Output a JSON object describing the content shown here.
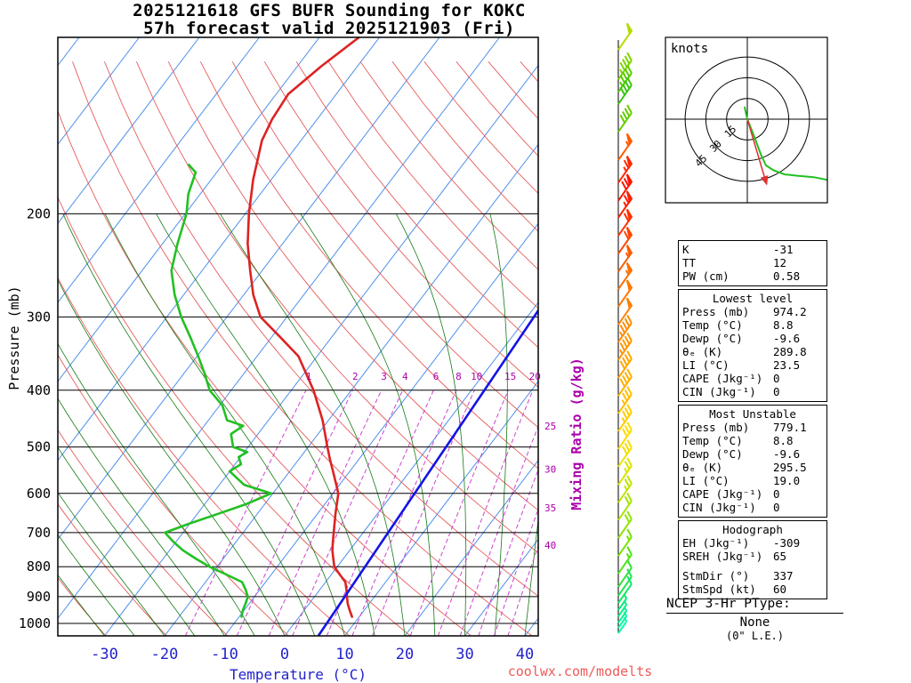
{
  "title": {
    "line1": "2025121618 GFS BUFR Sounding for KOKC",
    "line2": "57h forecast valid 2025121903 (Fri)"
  },
  "axes": {
    "pressure_label": "Pressure (mb)",
    "pressure_ticks": [
      200,
      300,
      400,
      500,
      600,
      700,
      800,
      900,
      1000
    ],
    "temperature_label": "Temperature (°C)",
    "temperature_ticks": [
      -30,
      -20,
      -10,
      0,
      10,
      20,
      30,
      40
    ],
    "mixing_ratio_label": "Mixing Ratio (g/kg)",
    "mixing_ratio_values": [
      1,
      2,
      3,
      4,
      6,
      8,
      10,
      15,
      20,
      25,
      30,
      35,
      40
    ]
  },
  "chart_data": {
    "type": "line",
    "subtype": "skew-t log-p sounding",
    "pressure_range_mb": [
      100,
      1050
    ],
    "grid": {
      "isotherms_every_c": 10,
      "dry_adiabats_every_k": 10,
      "moist_adiabats": true,
      "mixing_ratio_dashed": true
    },
    "series": [
      {
        "name": "temperature",
        "units": "mb,C",
        "color": "#dd2222",
        "width": 2.6,
        "points": [
          [
            974,
            8.8
          ],
          [
            950,
            7.6
          ],
          [
            925,
            6.4
          ],
          [
            900,
            5.4
          ],
          [
            875,
            4.4
          ],
          [
            850,
            3.3
          ],
          [
            825,
            1.4
          ],
          [
            800,
            -0.5
          ],
          [
            775,
            -1.7
          ],
          [
            750,
            -2.9
          ],
          [
            725,
            -3.9
          ],
          [
            700,
            -4.9
          ],
          [
            650,
            -7.0
          ],
          [
            600,
            -9.1
          ],
          [
            575,
            -10.9
          ],
          [
            550,
            -12.8
          ],
          [
            525,
            -14.8
          ],
          [
            500,
            -16.8
          ],
          [
            450,
            -21.0
          ],
          [
            400,
            -26.3
          ],
          [
            375,
            -29.6
          ],
          [
            350,
            -33.1
          ],
          [
            325,
            -38.5
          ],
          [
            300,
            -44.4
          ],
          [
            275,
            -48.4
          ],
          [
            250,
            -52.0
          ],
          [
            225,
            -55.8
          ],
          [
            200,
            -59.4
          ],
          [
            175,
            -63.0
          ],
          [
            150,
            -66.5
          ],
          [
            138,
            -67.5
          ],
          [
            125,
            -68.0
          ],
          [
            112,
            -66.0
          ],
          [
            100,
            -63.4
          ]
        ]
      },
      {
        "name": "dewpoint",
        "units": "mb,C",
        "color": "#22c022",
        "width": 2.6,
        "points": [
          [
            974,
            -9.6
          ],
          [
            950,
            -10.2
          ],
          [
            925,
            -10.6
          ],
          [
            900,
            -11.1
          ],
          [
            875,
            -12.4
          ],
          [
            850,
            -13.9
          ],
          [
            825,
            -17.5
          ],
          [
            800,
            -21.3
          ],
          [
            775,
            -24.6
          ],
          [
            750,
            -27.8
          ],
          [
            725,
            -30.5
          ],
          [
            700,
            -33.0
          ],
          [
            675,
            -30.0
          ],
          [
            650,
            -26.5
          ],
          [
            625,
            -23.0
          ],
          [
            600,
            -20.3
          ],
          [
            580,
            -25.9
          ],
          [
            550,
            -30.0
          ],
          [
            535,
            -29.0
          ],
          [
            520,
            -30.3
          ],
          [
            510,
            -29.5
          ],
          [
            500,
            -32.5
          ],
          [
            475,
            -34.5
          ],
          [
            460,
            -33.5
          ],
          [
            450,
            -36.9
          ],
          [
            425,
            -39.5
          ],
          [
            400,
            -43.6
          ],
          [
            375,
            -46.5
          ],
          [
            350,
            -49.8
          ],
          [
            325,
            -53.5
          ],
          [
            300,
            -57.6
          ],
          [
            275,
            -61.5
          ],
          [
            250,
            -65.1
          ],
          [
            225,
            -67.5
          ],
          [
            200,
            -69.8
          ],
          [
            185,
            -72.0
          ],
          [
            170,
            -73.5
          ],
          [
            165,
            -75.6
          ]
        ]
      },
      {
        "name": "reference-line",
        "units": "mb,C",
        "color": "#1414e6",
        "width": 2.6,
        "points": [
          [
            1050,
            5.6
          ],
          [
            281,
            0.9
          ]
        ]
      }
    ]
  },
  "wind_barbs": {
    "barbs": [
      {
        "p": 105,
        "spd_kt": 50,
        "color": "#b4dc00"
      },
      {
        "p": 118,
        "spd_kt": 45,
        "color": "#7cd400"
      },
      {
        "p": 124,
        "spd_kt": 45,
        "color": "#58cc00"
      },
      {
        "p": 130,
        "spd_kt": 40,
        "color": "#3cc414"
      },
      {
        "p": 145,
        "spd_kt": 40,
        "color": "#66cc00"
      },
      {
        "p": 162,
        "spd_kt": 55,
        "color": "#ff5a00"
      },
      {
        "p": 177,
        "spd_kt": 65,
        "color": "#ff2800"
      },
      {
        "p": 190,
        "spd_kt": 70,
        "color": "#ff1400"
      },
      {
        "p": 203,
        "spd_kt": 65,
        "color": "#ff1e00"
      },
      {
        "p": 218,
        "spd_kt": 60,
        "color": "#ff3200"
      },
      {
        "p": 234,
        "spd_kt": 60,
        "color": "#ff4600"
      },
      {
        "p": 251,
        "spd_kt": 55,
        "color": "#ff5a00"
      },
      {
        "p": 269,
        "spd_kt": 55,
        "color": "#ff6e00"
      },
      {
        "p": 288,
        "spd_kt": 50,
        "color": "#ff7800"
      },
      {
        "p": 309,
        "spd_kt": 50,
        "color": "#ff8200"
      },
      {
        "p": 331,
        "spd_kt": 45,
        "color": "#ff8c00"
      },
      {
        "p": 355,
        "spd_kt": 45,
        "color": "#ff9600"
      },
      {
        "p": 381,
        "spd_kt": 40,
        "color": "#ffa500"
      },
      {
        "p": 409,
        "spd_kt": 40,
        "color": "#ffaf00"
      },
      {
        "p": 438,
        "spd_kt": 35,
        "color": "#ffbe00"
      },
      {
        "p": 470,
        "spd_kt": 35,
        "color": "#ffcd00"
      },
      {
        "p": 504,
        "spd_kt": 30,
        "color": "#ffdc00"
      },
      {
        "p": 540,
        "spd_kt": 30,
        "color": "#f0e000"
      },
      {
        "p": 580,
        "spd_kt": 25,
        "color": "#d8e400"
      },
      {
        "p": 622,
        "spd_kt": 25,
        "color": "#c0e400"
      },
      {
        "p": 666,
        "spd_kt": 20,
        "color": "#a8e400"
      },
      {
        "p": 715,
        "spd_kt": 20,
        "color": "#90e400"
      },
      {
        "p": 767,
        "spd_kt": 15,
        "color": "#74e400"
      },
      {
        "p": 822,
        "spd_kt": 15,
        "color": "#50e414"
      },
      {
        "p": 866,
        "spd_kt": 10,
        "color": "#30e432"
      },
      {
        "p": 897,
        "spd_kt": 10,
        "color": "#1ee450"
      },
      {
        "p": 923,
        "spd_kt": 10,
        "color": "#10e862"
      },
      {
        "p": 949,
        "spd_kt": 5,
        "color": "#06ec74"
      },
      {
        "p": 973,
        "spd_kt": 5,
        "color": "#00f084"
      },
      {
        "p": 997,
        "spd_kt": 5,
        "color": "#00f492"
      },
      {
        "p": 1018,
        "spd_kt": 5,
        "color": "#00f89e"
      },
      {
        "p": 1039,
        "spd_kt": 5,
        "color": "#00fca8"
      }
    ]
  },
  "hodograph": {
    "unit_label": "knots",
    "rings_kt": [
      15,
      30,
      45
    ],
    "trace_kt": [
      [
        -2,
        9
      ],
      [
        0,
        0
      ],
      [
        4,
        -10
      ],
      [
        7,
        -18
      ],
      [
        10,
        -26
      ],
      [
        13.5,
        -33.5
      ],
      [
        19,
        -37
      ],
      [
        27,
        -40
      ],
      [
        37,
        -41
      ],
      [
        48,
        -42
      ],
      [
        58,
        -44
      ]
    ],
    "storm_motion": {
      "dir_deg": 337,
      "spd_kt": 60,
      "vector_kt": [
        14,
        -47
      ]
    }
  },
  "stats": {
    "summary": {
      "rows": [
        [
          "K",
          "-31"
        ],
        [
          "TT",
          "12"
        ],
        [
          "PW (cm)",
          "0.58"
        ]
      ]
    },
    "lowest": {
      "header": "Lowest level",
      "rows": [
        [
          "Press (mb)",
          "974.2"
        ],
        [
          "Temp (°C)",
          "8.8"
        ],
        [
          "Dewp (°C)",
          "-9.6"
        ],
        [
          "θₑ (K)",
          "289.8"
        ],
        [
          "LI (°C)",
          "23.5"
        ],
        [
          "CAPE (Jkg⁻¹)",
          "0"
        ],
        [
          "CIN (Jkg⁻¹)",
          "0"
        ]
      ]
    },
    "most_unstable": {
      "header": "Most Unstable",
      "rows": [
        [
          "Press (mb)",
          "779.1"
        ],
        [
          "Temp (°C)",
          "8.8"
        ],
        [
          "Dewp (°C)",
          "-9.6"
        ],
        [
          "θₑ (K)",
          "295.5"
        ],
        [
          "LI (°C)",
          "19.0"
        ],
        [
          "CAPE (Jkg⁻¹)",
          "0"
        ],
        [
          "CIN (Jkg⁻¹)",
          "0"
        ]
      ]
    },
    "hodograph": {
      "header": "Hodograph",
      "rows": [
        [
          "EH (Jkg⁻¹)",
          "-309"
        ],
        [
          "SREH (Jkg⁻¹)",
          "65"
        ],
        [
          "",
          ""
        ],
        [
          "StmDir (°)",
          "337"
        ],
        [
          "StmSpd (kt)",
          "60"
        ]
      ]
    }
  },
  "ptype": {
    "line1": "NCEP 3-Hr PType:",
    "value": "None",
    "note": "(0\" L.E.)"
  },
  "footer": {
    "watermark": "coolwx.com/modelts"
  },
  "colors": {
    "isotherm": "#4f8fea",
    "dry_adiabat": "#e65c5c",
    "moist_adiabat": "#147a14",
    "mixing_ratio_line": "#cc44cc",
    "mixing_ratio_label": "#aa00aa",
    "temp_axis": "#2222cc",
    "storm_arrow": "#e03131",
    "hodograph_trace": "#22c022",
    "watermark": "#ef5a5a"
  }
}
